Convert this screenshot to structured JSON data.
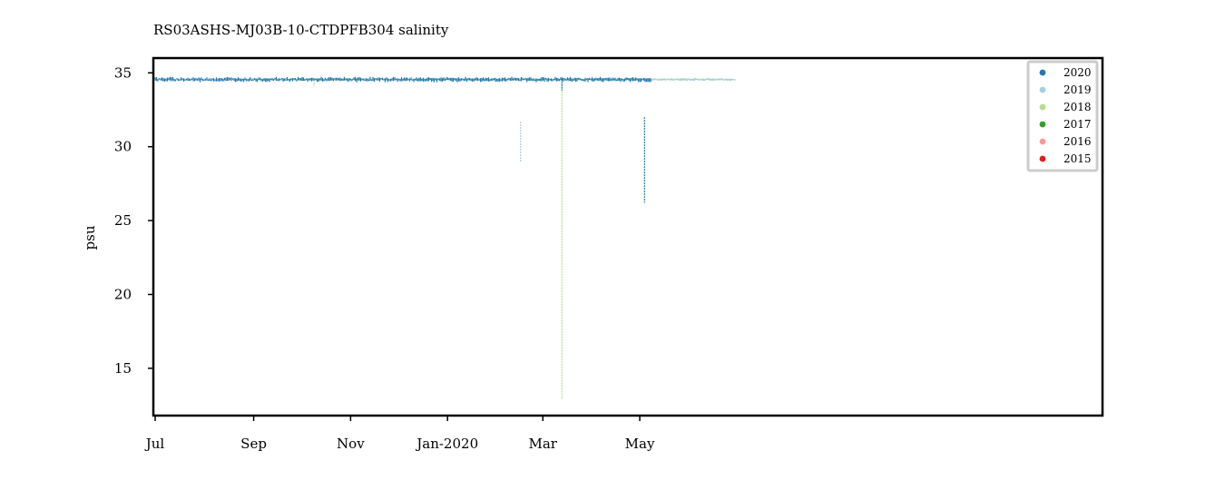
{
  "chart_data": {
    "type": "scatter",
    "title": "RS03ASHS-MJ03B-10-CTDPFB304 salinity",
    "xlabel": "",
    "ylabel": "psu",
    "xlim": [
      "2019-07-01",
      "2020-06-30"
    ],
    "ylim": [
      11.8,
      36.0
    ],
    "x_ticks": [
      {
        "date": "2019-07-01",
        "label": "Jul"
      },
      {
        "date": "2019-09-01",
        "label": "Sep"
      },
      {
        "date": "2019-11-01",
        "label": "Nov"
      },
      {
        "date": "2020-01-01",
        "label": "Jan-2020"
      },
      {
        "date": "2020-03-01",
        "label": "Mar"
      },
      {
        "date": "2020-05-01",
        "label": "May"
      }
    ],
    "y_ticks": [
      15,
      20,
      25,
      30,
      35
    ],
    "grid": false,
    "legend_position": "top-right",
    "series": [
      {
        "name": "2020",
        "color": "#1f78b4",
        "start": "2019-07-01",
        "end": "2020-05-08",
        "base": 34.55,
        "spread": 0.2,
        "spikes": [
          {
            "date": "2020-05-04",
            "from": 26.2,
            "to": 32.0
          },
          {
            "date": "2020-03-13",
            "from": 33.8,
            "to": 34.6
          }
        ]
      },
      {
        "name": "2019",
        "color": "#a6cee3",
        "start": "2019-07-01",
        "end": "2020-06-30",
        "base": 34.55,
        "spread": 0.12,
        "spikes": [
          {
            "date": "2020-02-16",
            "from": 29.0,
            "to": 31.7
          }
        ]
      },
      {
        "name": "2018",
        "color": "#b2df8a",
        "start": "2019-08-20",
        "end": "2020-06-30",
        "base": 34.55,
        "spread": 0.1,
        "spikes": [
          {
            "date": "2020-03-13",
            "from": 12.9,
            "to": 34.3
          },
          {
            "date": "2019-10-09",
            "from": 34.1,
            "to": 34.5
          }
        ]
      },
      {
        "name": "2017",
        "color": "#33a02c",
        "start": "",
        "end": "",
        "base": 34.55,
        "spread": 0,
        "spikes": []
      },
      {
        "name": "2016",
        "color": "#fb9a99",
        "start": "",
        "end": "",
        "base": 34.55,
        "spread": 0,
        "spikes": []
      },
      {
        "name": "2015",
        "color": "#e31a1c",
        "start": "",
        "end": "",
        "base": 34.55,
        "spread": 0,
        "spikes": []
      }
    ]
  }
}
